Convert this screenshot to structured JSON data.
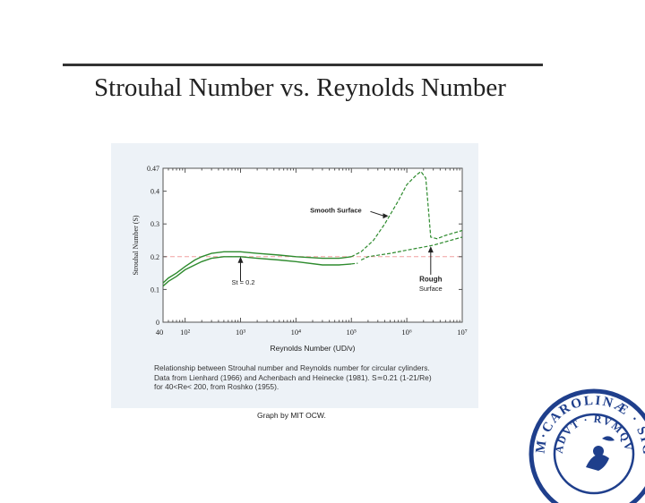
{
  "slide": {
    "title": "Strouhal Number vs. Reynolds Number"
  },
  "figure": {
    "caption_lines": [
      "Relationship between Strouhal number and Reynolds number for circular cylinders.",
      "Data from Lienhard (1966) and Achenbach and Heinecke (1981). S≃0.21 (1-21/Re)",
      "for 40<Re< 200, from Roshko (1955)."
    ],
    "credit": "Graph by MIT OCW."
  },
  "seal": {
    "text": "M·CAROLINÆ · SIGILL · ADVT · RVMQV"
  },
  "chart_data": {
    "type": "line",
    "title": "",
    "xlabel": "Reynolds Number (UD/v)",
    "ylabel": "Strouhal Number (S)",
    "xscale": "log",
    "xlim": [
      40,
      10000000
    ],
    "ylim": [
      0,
      0.47
    ],
    "x_ticks": [
      {
        "value": 40,
        "label": "40"
      },
      {
        "value": 100,
        "label": "10²"
      },
      {
        "value": 1000,
        "label": "10³"
      },
      {
        "value": 10000,
        "label": "10⁴"
      },
      {
        "value": 100000,
        "label": "10⁵"
      },
      {
        "value": 1000000,
        "label": "10⁶"
      },
      {
        "value": 10000000,
        "label": "10⁷"
      }
    ],
    "y_ticks": [
      {
        "value": 0,
        "label": "0"
      },
      {
        "value": 0.1,
        "label": "0.1"
      },
      {
        "value": 0.2,
        "label": "0.2"
      },
      {
        "value": 0.3,
        "label": "0.3"
      },
      {
        "value": 0.4,
        "label": "0.4"
      },
      {
        "value": 0.47,
        "label": "0.47"
      }
    ],
    "reference_line": {
      "y": 0.2,
      "color": "#f0a0a0",
      "style": "dashed"
    },
    "line_color": "#2e8b2e",
    "bands": [
      {
        "name": "Smooth Surface",
        "upper": [
          [
            40,
            0.12
          ],
          [
            50,
            0.135
          ],
          [
            70,
            0.15
          ],
          [
            100,
            0.17
          ],
          [
            150,
            0.19
          ],
          [
            200,
            0.2
          ],
          [
            300,
            0.21
          ],
          [
            500,
            0.215
          ],
          [
            1000,
            0.215
          ],
          [
            2000,
            0.21
          ],
          [
            5000,
            0.205
          ],
          [
            10000,
            0.2
          ],
          [
            30000,
            0.195
          ],
          [
            60000,
            0.195
          ],
          [
            100000,
            0.2
          ],
          [
            150000,
            0.215
          ],
          [
            250000,
            0.25
          ],
          [
            400000,
            0.3
          ],
          [
            700000,
            0.37
          ],
          [
            1000000,
            0.42
          ],
          [
            1500000,
            0.45
          ],
          [
            1800000,
            0.46
          ],
          [
            2200000,
            0.44
          ],
          [
            2500000,
            0.33
          ],
          [
            2700000,
            0.26
          ],
          [
            3500000,
            0.255
          ],
          [
            5000000,
            0.265
          ],
          [
            10000000,
            0.28
          ]
        ],
        "lower": [
          [
            40,
            0.11
          ],
          [
            50,
            0.125
          ],
          [
            70,
            0.14
          ],
          [
            100,
            0.16
          ],
          [
            150,
            0.175
          ],
          [
            200,
            0.185
          ],
          [
            300,
            0.195
          ],
          [
            500,
            0.2
          ],
          [
            1000,
            0.2
          ],
          [
            2000,
            0.195
          ],
          [
            5000,
            0.19
          ],
          [
            10000,
            0.185
          ],
          [
            30000,
            0.175
          ],
          [
            60000,
            0.175
          ],
          [
            100000,
            0.178
          ],
          [
            130000,
            0.18
          ]
        ]
      },
      {
        "name": "Rough Surface",
        "upper": [
          [
            150000,
            0.19
          ],
          [
            200000,
            0.2
          ],
          [
            500000,
            0.21
          ],
          [
            1000000,
            0.22
          ],
          [
            3000000,
            0.235
          ],
          [
            10000000,
            0.26
          ]
        ],
        "lower": []
      }
    ],
    "annotations": [
      {
        "text": "Smooth Surface",
        "arrow_to": [
          500000,
          0.33
        ]
      },
      {
        "text": "St = 0.2",
        "arrow_to": [
          1000,
          0.2
        ]
      },
      {
        "text": "Rough",
        "subtext": "Surface",
        "arrow_to": [
          2700000,
          0.235
        ]
      }
    ],
    "grid": false
  }
}
